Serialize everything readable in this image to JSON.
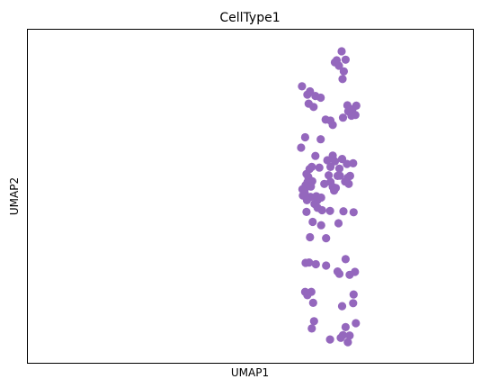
{
  "chart_data": {
    "type": "scatter",
    "title": "CellType1",
    "xlabel": "UMAP1",
    "ylabel": "UMAP2",
    "xlim": [
      0,
      100
    ],
    "ylim": [
      0,
      100
    ],
    "ticks": false,
    "grid": false,
    "legend": "none",
    "point_color": "#9467bd",
    "points": [
      [
        69.4,
        90.8
      ],
      [
        69.0,
        90.2
      ],
      [
        70.5,
        93.5
      ],
      [
        71.4,
        91.0
      ],
      [
        69.9,
        89.2
      ],
      [
        71.0,
        87.5
      ],
      [
        70.7,
        85.2
      ],
      [
        61.6,
        83.0
      ],
      [
        63.4,
        81.5
      ],
      [
        64.6,
        80.1
      ],
      [
        65.8,
        79.6
      ],
      [
        62.8,
        80.5
      ],
      [
        64.2,
        76.8
      ],
      [
        63.1,
        77.8
      ],
      [
        71.8,
        77.3
      ],
      [
        72.0,
        75.5
      ],
      [
        72.9,
        76.1
      ],
      [
        73.8,
        77.2
      ],
      [
        72.7,
        74.2
      ],
      [
        73.6,
        74.4
      ],
      [
        70.8,
        73.6
      ],
      [
        68.0,
        72.7
      ],
      [
        66.9,
        73.0
      ],
      [
        68.5,
        71.4
      ],
      [
        62.3,
        67.7
      ],
      [
        65.8,
        67.1
      ],
      [
        61.4,
        64.6
      ],
      [
        64.6,
        62.1
      ],
      [
        63.8,
        58.8
      ],
      [
        65.5,
        58.6
      ],
      [
        67.3,
        60.8
      ],
      [
        68.5,
        62.2
      ],
      [
        69.0,
        60.5
      ],
      [
        68.0,
        58.8
      ],
      [
        70.0,
        58.3
      ],
      [
        70.1,
        56.2
      ],
      [
        69.6,
        56.1
      ],
      [
        67.6,
        56.3
      ],
      [
        68.0,
        54.3
      ],
      [
        68.5,
        52.8
      ],
      [
        66.6,
        53.7
      ],
      [
        69.2,
        52.5
      ],
      [
        71.9,
        55.6
      ],
      [
        71.7,
        59.7
      ],
      [
        70.6,
        61.2
      ],
      [
        73.1,
        59.9
      ],
      [
        72.4,
        56.1
      ],
      [
        72.1,
        53.7
      ],
      [
        71.3,
        54.4
      ],
      [
        68.8,
        51.7
      ],
      [
        63.3,
        58.2
      ],
      [
        62.6,
        56.7
      ],
      [
        63.0,
        55.8
      ],
      [
        63.9,
        54.5
      ],
      [
        62.8,
        54.2
      ],
      [
        62.4,
        53.3
      ],
      [
        62.3,
        52.4
      ],
      [
        61.7,
        52.1
      ],
      [
        63.6,
        52.9
      ],
      [
        62.2,
        51.0
      ],
      [
        61.8,
        50.2
      ],
      [
        63.5,
        49.8
      ],
      [
        62.7,
        48.8
      ],
      [
        64.8,
        50.0
      ],
      [
        65.9,
        49.6
      ],
      [
        65.0,
        48.7
      ],
      [
        64.4,
        47.7
      ],
      [
        65.1,
        46.5
      ],
      [
        66.1,
        45.8
      ],
      [
        67.9,
        45.6
      ],
      [
        62.6,
        45.3
      ],
      [
        70.9,
        45.5
      ],
      [
        73.2,
        45.2
      ],
      [
        64.0,
        42.3
      ],
      [
        65.9,
        41.3
      ],
      [
        69.8,
        41.9
      ],
      [
        67.0,
        37.4
      ],
      [
        63.4,
        37.7
      ],
      [
        62.4,
        30.0
      ],
      [
        63.2,
        30.1
      ],
      [
        64.7,
        29.6
      ],
      [
        67.0,
        29.2
      ],
      [
        69.6,
        27.4
      ],
      [
        70.0,
        26.7
      ],
      [
        72.3,
        26.4
      ],
      [
        73.5,
        27.3
      ],
      [
        71.4,
        31.1
      ],
      [
        62.3,
        21.3
      ],
      [
        63.7,
        21.3
      ],
      [
        62.8,
        20.3
      ],
      [
        64.1,
        18.0
      ],
      [
        73.2,
        20.5
      ],
      [
        70.6,
        17.0
      ],
      [
        73.1,
        17.9
      ],
      [
        64.3,
        12.5
      ],
      [
        63.8,
        10.3
      ],
      [
        71.4,
        10.7
      ],
      [
        70.8,
        8.3
      ],
      [
        72.3,
        8.2
      ],
      [
        70.3,
        7.5
      ],
      [
        67.9,
        7.0
      ],
      [
        71.9,
        6.2
      ],
      [
        73.7,
        11.9
      ]
    ]
  }
}
